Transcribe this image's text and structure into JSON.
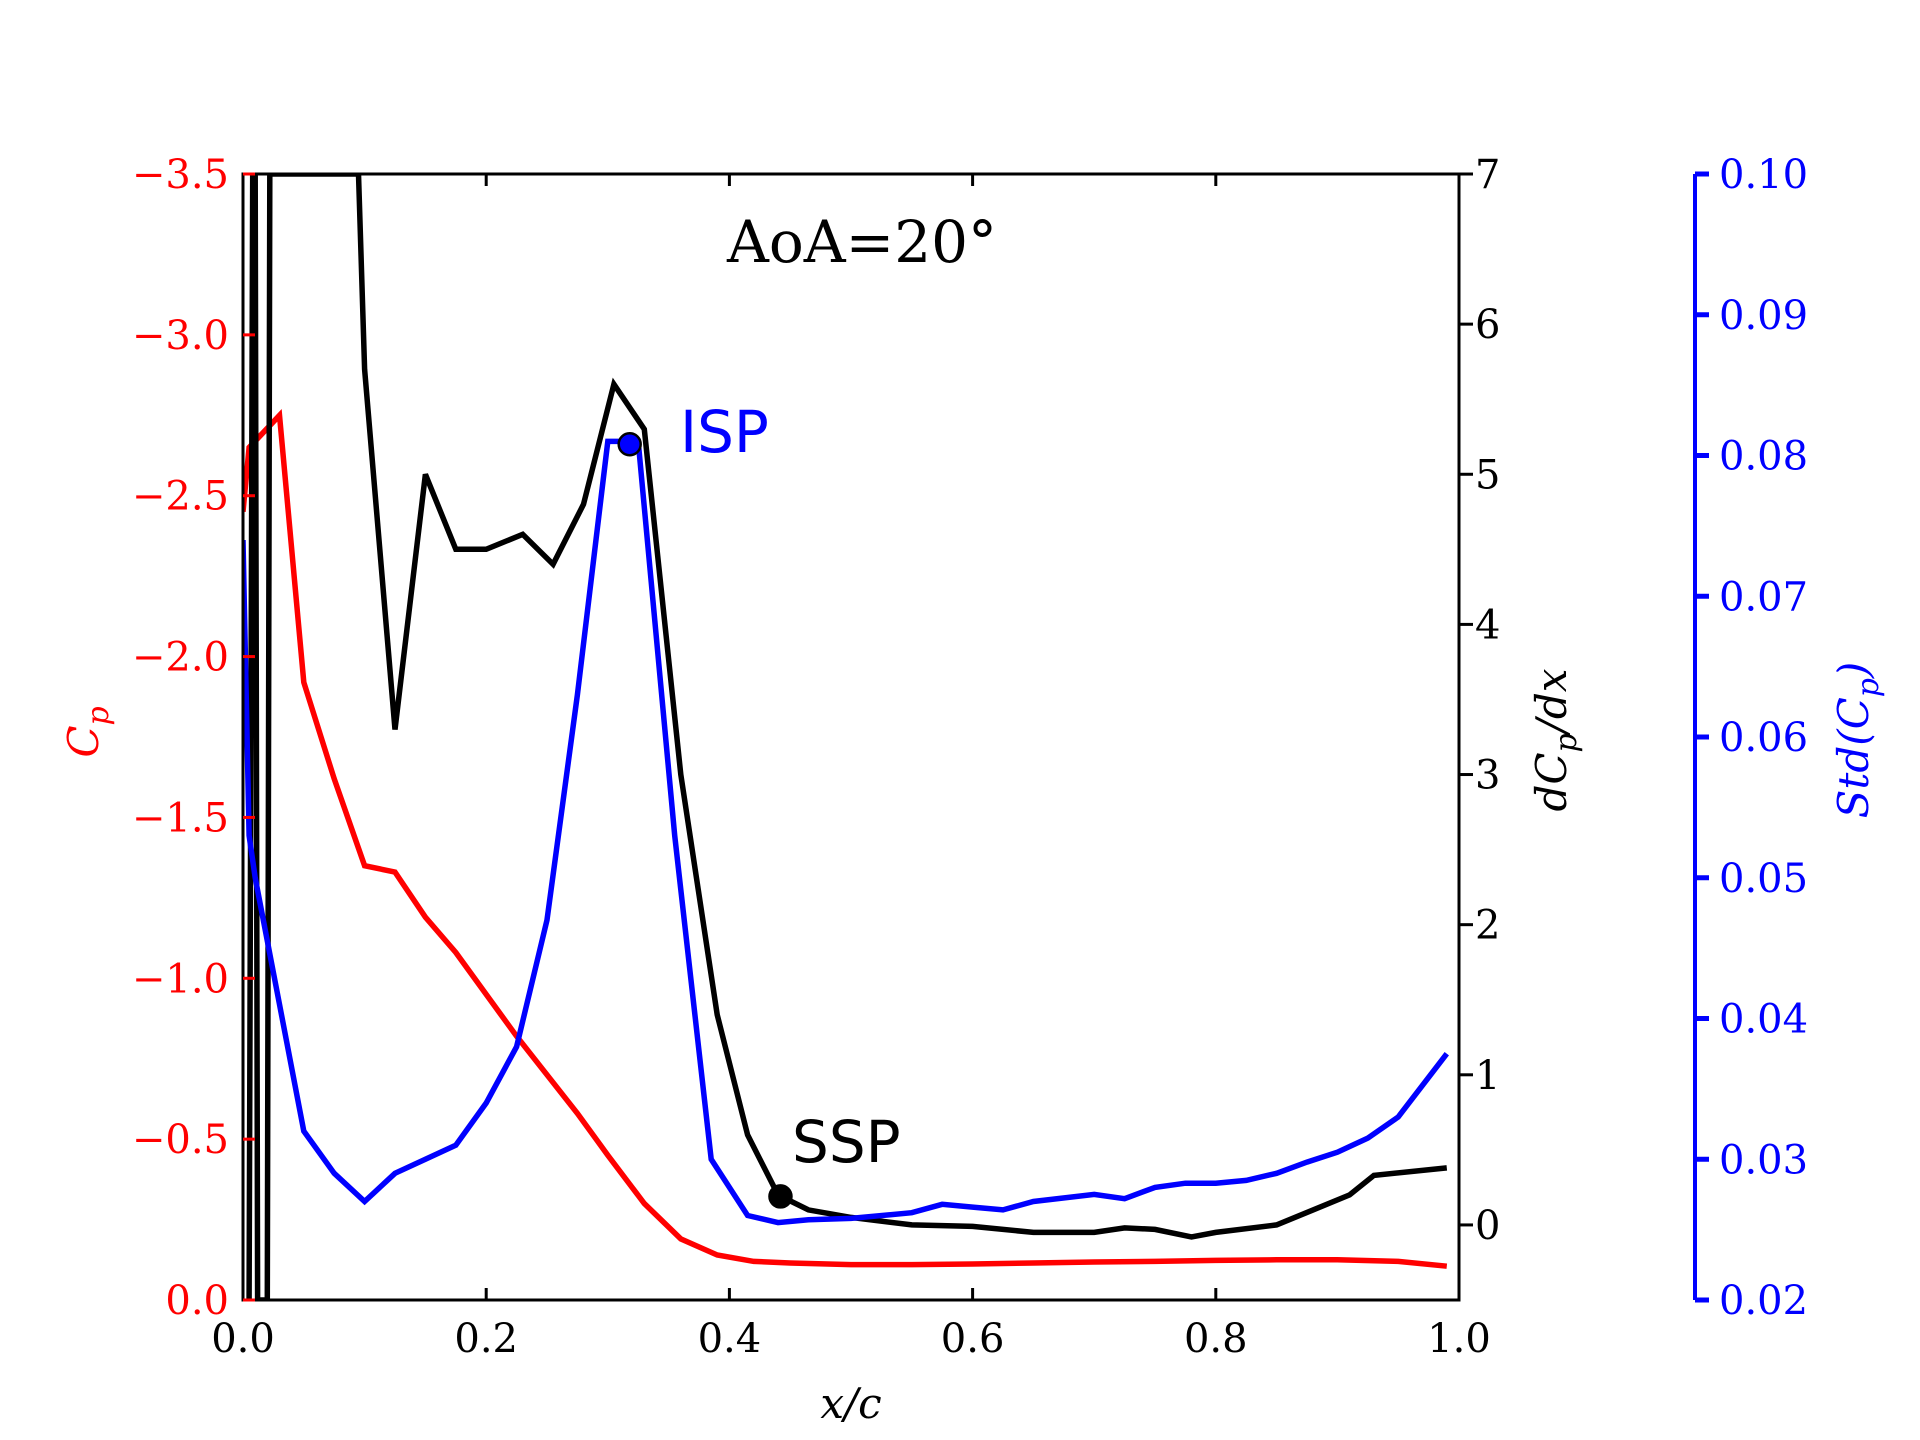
{
  "chart_data": {
    "type": "line",
    "title": "",
    "annotations": {
      "aoa": "AoA=20°",
      "isp": "ISP",
      "ssp": "SSP"
    },
    "xlabel": "x/c",
    "x_ticks": [
      "0.0",
      "0.2",
      "0.4",
      "0.6",
      "0.8",
      "1.0"
    ],
    "x_tick_values": [
      0.0,
      0.2,
      0.4,
      0.6,
      0.8,
      1.0
    ],
    "xlim": [
      0.0,
      1.0
    ],
    "axes": {
      "left": {
        "label": "C_p",
        "color": "#ff0000",
        "ylim": [
          0.0,
          -3.5
        ],
        "inverted": true,
        "ticks": [
          "−3.5",
          "−3.0",
          "−2.5",
          "−2.0",
          "−1.5",
          "−1.0",
          "−0.5",
          "0.0"
        ],
        "tick_values": [
          -3.5,
          -3.0,
          -2.5,
          -2.0,
          -1.5,
          -1.0,
          -0.5,
          0.0
        ]
      },
      "right1": {
        "label": "dC_p/dx",
        "color": "#000000",
        "ylim": [
          -0.5,
          7.0
        ],
        "ticks": [
          "7",
          "6",
          "5",
          "4",
          "3",
          "2",
          "1",
          "0"
        ],
        "tick_values": [
          7,
          6,
          5,
          4,
          3,
          2,
          1,
          0
        ]
      },
      "right2": {
        "label": "Std(C_p)",
        "color": "#0000ff",
        "ylim": [
          0.02,
          0.1
        ],
        "ticks": [
          "0.10",
          "0.09",
          "0.08",
          "0.07",
          "0.06",
          "0.05",
          "0.04",
          "0.03",
          "0.02"
        ],
        "tick_values": [
          0.1,
          0.09,
          0.08,
          0.07,
          0.06,
          0.05,
          0.04,
          0.03,
          0.02
        ]
      }
    },
    "series": [
      {
        "name": "Cp",
        "axis": "left",
        "color": "#ff0000",
        "x": [
          0.0,
          0.005,
          0.03,
          0.05,
          0.075,
          0.1,
          0.125,
          0.15,
          0.175,
          0.2,
          0.225,
          0.25,
          0.275,
          0.3,
          0.33,
          0.36,
          0.39,
          0.42,
          0.45,
          0.5,
          0.55,
          0.6,
          0.65,
          0.7,
          0.75,
          0.8,
          0.85,
          0.9,
          0.95,
          0.99
        ],
        "values": [
          -2.45,
          -2.65,
          -2.75,
          -1.92,
          -1.62,
          -1.35,
          -1.33,
          -1.19,
          -1.08,
          -0.95,
          -0.82,
          -0.7,
          -0.58,
          -0.45,
          -0.3,
          -0.19,
          -0.14,
          -0.12,
          -0.115,
          -0.11,
          -0.11,
          -0.112,
          -0.115,
          -0.118,
          -0.12,
          -0.123,
          -0.125,
          -0.125,
          -0.12,
          -0.105
        ]
      },
      {
        "name": "dCp/dx",
        "axis": "right1",
        "color": "#000000",
        "x": [
          0.005,
          0.008,
          0.01,
          0.012,
          0.02,
          0.022,
          0.025,
          0.095,
          0.1,
          0.125,
          0.15,
          0.175,
          0.2,
          0.23,
          0.255,
          0.28,
          0.305,
          0.33,
          0.36,
          0.39,
          0.415,
          0.44,
          0.465,
          0.5,
          0.55,
          0.6,
          0.65,
          0.7,
          0.725,
          0.75,
          0.78,
          0.8,
          0.85,
          0.88,
          0.91,
          0.93,
          0.99
        ],
        "values": [
          -0.5,
          7.0,
          7.0,
          -0.5,
          -0.5,
          7.0,
          7.0,
          7.0,
          5.7,
          3.3,
          5.0,
          4.5,
          4.5,
          4.6,
          4.4,
          4.8,
          5.6,
          5.3,
          3.0,
          1.4,
          0.6,
          0.2,
          0.1,
          0.05,
          0.0,
          -0.01,
          -0.05,
          -0.05,
          -0.02,
          -0.03,
          -0.08,
          -0.05,
          0.0,
          0.1,
          0.2,
          0.33,
          0.38
        ]
      },
      {
        "name": "Std(Cp)",
        "axis": "right2",
        "color": "#0000ff",
        "x": [
          0.0,
          0.005,
          0.01,
          0.03,
          0.05,
          0.075,
          0.1,
          0.125,
          0.15,
          0.175,
          0.2,
          0.225,
          0.25,
          0.275,
          0.3,
          0.325,
          0.355,
          0.385,
          0.415,
          0.44,
          0.465,
          0.5,
          0.55,
          0.575,
          0.6,
          0.625,
          0.65,
          0.7,
          0.725,
          0.75,
          0.775,
          0.8,
          0.825,
          0.85,
          0.875,
          0.9,
          0.925,
          0.95,
          0.99
        ],
        "values": [
          0.074,
          0.053,
          0.05,
          0.041,
          0.032,
          0.029,
          0.027,
          0.029,
          0.03,
          0.031,
          0.034,
          0.038,
          0.047,
          0.063,
          0.081,
          0.081,
          0.053,
          0.03,
          0.026,
          0.0255,
          0.0257,
          0.0258,
          0.0262,
          0.0268,
          0.0266,
          0.0264,
          0.027,
          0.0275,
          0.0272,
          0.028,
          0.0283,
          0.0283,
          0.0285,
          0.029,
          0.0298,
          0.0305,
          0.0315,
          0.033,
          0.0375
        ]
      }
    ],
    "markers": [
      {
        "name": "ISP",
        "axis": "right2",
        "x": 0.318,
        "value": 0.0808,
        "color": "#0000ff"
      },
      {
        "name": "SSP",
        "axis": "right1",
        "x": 0.442,
        "value": 0.19,
        "color": "#000000"
      }
    ]
  }
}
